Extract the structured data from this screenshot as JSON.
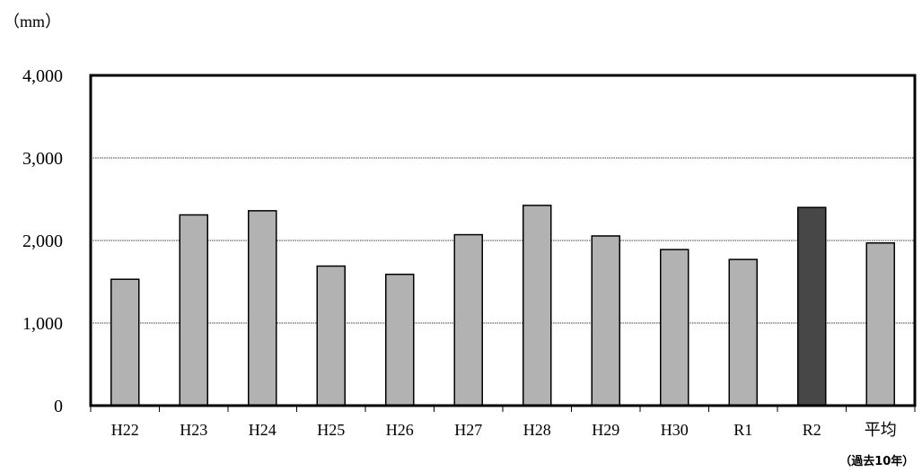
{
  "chart_data": {
    "type": "bar",
    "unit_label": "（mm）",
    "categories": [
      "H22",
      "H23",
      "H24",
      "H25",
      "H26",
      "H27",
      "H28",
      "H29",
      "H30",
      "R1",
      "R2",
      "平均"
    ],
    "values": [
      1530,
      2310,
      2360,
      1690,
      1590,
      2070,
      2425,
      2055,
      1890,
      1770,
      2400,
      1970
    ],
    "highlight_category": "R2",
    "y_ticks": [
      0,
      1000,
      2000,
      3000,
      4000
    ],
    "y_tick_labels": [
      "0",
      "1,000",
      "2,000",
      "3,000",
      "4,000"
    ],
    "ylim": [
      0,
      4000
    ],
    "grid": true,
    "average_note": "（過去10年）",
    "colors": {
      "bar": "#b2b2b2",
      "bar_highlight": "#474747",
      "bar_stroke": "#000000",
      "grid": "#000000",
      "frame": "#000000"
    }
  }
}
